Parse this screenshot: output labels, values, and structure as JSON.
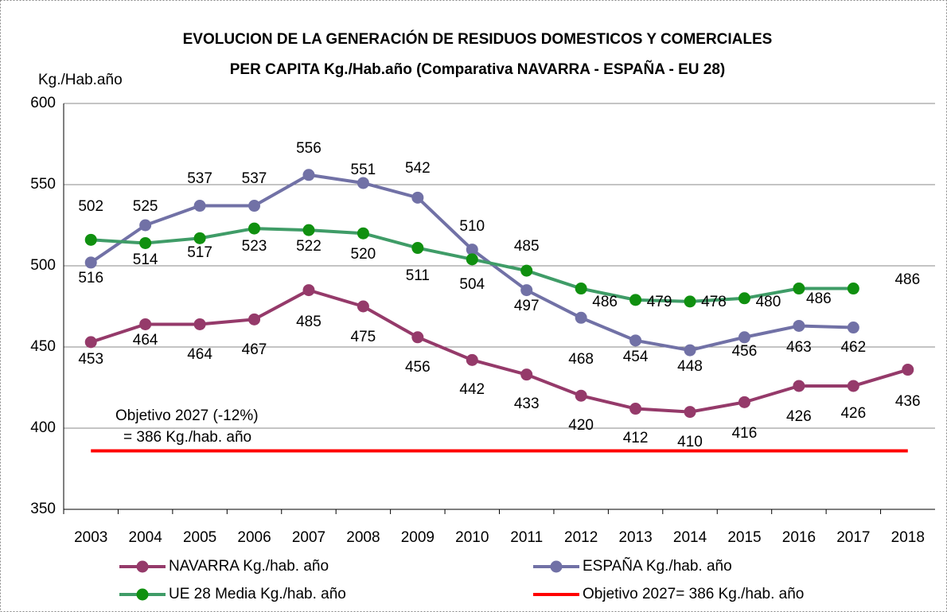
{
  "chart_data": {
    "type": "line",
    "title": "EVOLUCION DE LA GENERACIÓN DE RESIDUOS DOMESTICOS Y COMERCIALES",
    "subtitle": "PER CAPITA Kg./Hab.año  (Comparativa NAVARRA - ESPAÑA - EU 28)",
    "y_label": "Kg./Hab.año",
    "categories": [
      "2003",
      "2004",
      "2005",
      "2006",
      "2007",
      "2008",
      "2009",
      "2010",
      "2011",
      "2012",
      "2013",
      "2014",
      "2015",
      "2016",
      "2017",
      "2018"
    ],
    "series": [
      {
        "name": "NAVARRA  Kg./hab. año",
        "color": "#953a6a",
        "marker_color": "#953a6a",
        "values": [
          453,
          464,
          464,
          467,
          485,
          475,
          456,
          442,
          433,
          420,
          412,
          410,
          416,
          426,
          426,
          436
        ]
      },
      {
        "name": "ESPAÑA Kg./hab. año",
        "color": "#7171a6",
        "marker_color": "#7171a6",
        "values": [
          502,
          525,
          537,
          537,
          556,
          551,
          542,
          510,
          485,
          468,
          454,
          448,
          456,
          463,
          462,
          null
        ]
      },
      {
        "name": "UE 28 Media Kg./hab. año",
        "color": "#3f9c67",
        "marker_color": "#109010",
        "values": [
          516,
          514,
          517,
          523,
          522,
          520,
          511,
          504,
          497,
          486,
          479,
          478,
          480,
          486,
          486,
          null
        ]
      }
    ],
    "target": {
      "name": "Objetivo 2027= 386 Kg./hab. año",
      "value": 386,
      "color": "#ff0000"
    },
    "annotations": [
      "Objetivo 2027 (-12%)",
      "= 386 Kg./hab. año"
    ],
    "ylim": [
      350,
      600
    ],
    "yticks": [
      350,
      400,
      450,
      500,
      550,
      600
    ],
    "grid": true
  }
}
